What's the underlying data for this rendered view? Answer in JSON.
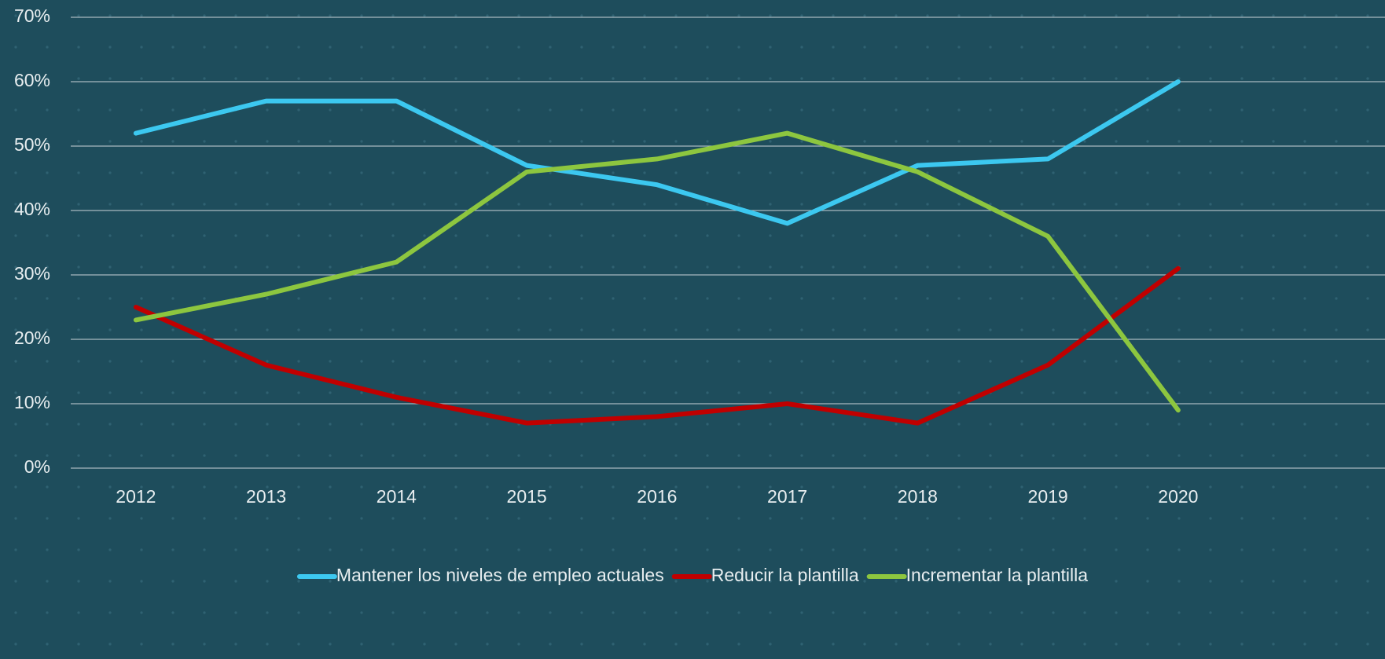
{
  "chart_data": {
    "type": "line",
    "categories": [
      "2012",
      "2013",
      "2014",
      "2015",
      "2016",
      "2017",
      "2018",
      "2019",
      "2020"
    ],
    "series": [
      {
        "name": "Mantener los niveles de empleo actuales",
        "color": "#3cc8f0",
        "values": [
          52,
          57,
          57,
          47,
          44,
          38,
          47,
          48,
          60
        ]
      },
      {
        "name": "Reducir la plantilla",
        "color": "#c00000",
        "values": [
          25,
          16,
          11,
          7,
          8,
          10,
          7,
          16,
          31
        ]
      },
      {
        "name": "Incrementar la plantilla",
        "color": "#8dc63f",
        "values": [
          23,
          27,
          32,
          46,
          48,
          52,
          46,
          36,
          9
        ]
      }
    ],
    "ylim": [
      0,
      70
    ],
    "yticks": [
      {
        "value": 0,
        "label": "0%"
      },
      {
        "value": 10,
        "label": "10%"
      },
      {
        "value": 20,
        "label": "20%"
      },
      {
        "value": 30,
        "label": "30%"
      },
      {
        "value": 40,
        "label": "40%"
      },
      {
        "value": 50,
        "label": "50%"
      },
      {
        "value": 60,
        "label": "60%"
      },
      {
        "value": 70,
        "label": "70%"
      }
    ],
    "grid": true,
    "legend": "bottom"
  }
}
